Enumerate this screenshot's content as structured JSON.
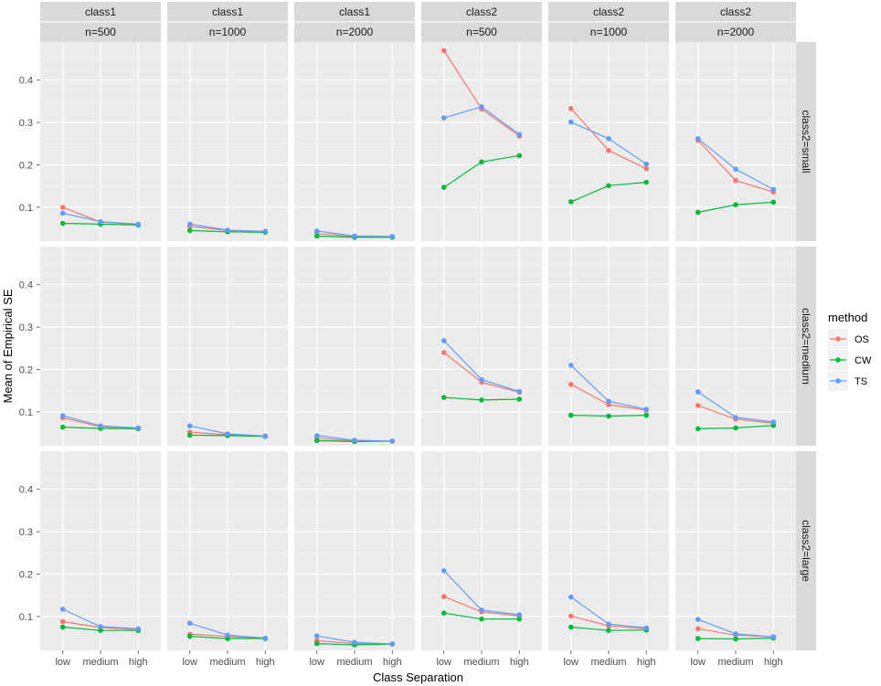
{
  "chart_data": {
    "type": "line",
    "xlabel": "Class Separation",
    "ylabel": "Mean of Empirical SE",
    "categories": [
      "low",
      "medium",
      "high"
    ],
    "ylim": [
      0.02,
      0.49
    ],
    "yticks": [
      0.1,
      0.2,
      0.3,
      0.4
    ],
    "yticklabels": [
      "0.1",
      "0.2",
      "0.3",
      "0.4"
    ],
    "columns": [
      {
        "top": "class1",
        "bottom": "n=500"
      },
      {
        "top": "class1",
        "bottom": "n=1000"
      },
      {
        "top": "class1",
        "bottom": "n=2000"
      },
      {
        "top": "class2",
        "bottom": "n=500"
      },
      {
        "top": "class2",
        "bottom": "n=1000"
      },
      {
        "top": "class2",
        "bottom": "n=2000"
      }
    ],
    "rows": [
      "class2=small",
      "class2=medium",
      "class2=large"
    ],
    "legend": {
      "title": "method",
      "entries": [
        {
          "name": "OS",
          "color": "#F8766D"
        },
        {
          "name": "CW",
          "color": "#00BA38"
        },
        {
          "name": "TS",
          "color": "#619CFF"
        }
      ]
    },
    "panels": [
      [
        {
          "OS": [
            0.1,
            0.065,
            0.059
          ],
          "CW": [
            0.062,
            0.06,
            0.058
          ],
          "TS": [
            0.086,
            0.066,
            0.06
          ]
        },
        {
          "OS": [
            0.055,
            0.045,
            0.043
          ],
          "CW": [
            0.045,
            0.042,
            0.041
          ],
          "TS": [
            0.06,
            0.046,
            0.043
          ]
        },
        {
          "OS": [
            0.038,
            0.031,
            0.03
          ],
          "CW": [
            0.032,
            0.029,
            0.029
          ],
          "TS": [
            0.044,
            0.032,
            0.031
          ]
        },
        {
          "OS": [
            0.47,
            0.332,
            0.268
          ],
          "CW": [
            0.147,
            0.207,
            0.222
          ],
          "TS": [
            0.311,
            0.337,
            0.272
          ]
        },
        {
          "OS": [
            0.333,
            0.234,
            0.191
          ],
          "CW": [
            0.113,
            0.151,
            0.159
          ],
          "TS": [
            0.301,
            0.262,
            0.202
          ]
        },
        {
          "OS": [
            0.258,
            0.163,
            0.136
          ],
          "CW": [
            0.088,
            0.106,
            0.112
          ],
          "TS": [
            0.262,
            0.19,
            0.142
          ]
        }
      ],
      [
        {
          "OS": [
            0.086,
            0.065,
            0.061
          ],
          "CW": [
            0.064,
            0.061,
            0.06
          ],
          "TS": [
            0.091,
            0.067,
            0.062
          ]
        },
        {
          "OS": [
            0.052,
            0.046,
            0.043
          ],
          "CW": [
            0.045,
            0.044,
            0.042
          ],
          "TS": [
            0.067,
            0.048,
            0.043
          ]
        },
        {
          "OS": [
            0.038,
            0.031,
            0.031
          ],
          "CW": [
            0.032,
            0.03,
            0.031
          ],
          "TS": [
            0.044,
            0.033,
            0.031
          ]
        },
        {
          "OS": [
            0.24,
            0.17,
            0.146
          ],
          "CW": [
            0.134,
            0.128,
            0.13
          ],
          "TS": [
            0.268,
            0.176,
            0.148
          ]
        },
        {
          "OS": [
            0.165,
            0.117,
            0.104
          ],
          "CW": [
            0.092,
            0.09,
            0.092
          ],
          "TS": [
            0.21,
            0.125,
            0.106
          ]
        },
        {
          "OS": [
            0.115,
            0.083,
            0.073
          ],
          "CW": [
            0.06,
            0.062,
            0.068
          ],
          "TS": [
            0.147,
            0.087,
            0.076
          ]
        }
      ],
      [
        {
          "OS": [
            0.088,
            0.074,
            0.069
          ],
          "CW": [
            0.075,
            0.067,
            0.067
          ],
          "TS": [
            0.117,
            0.076,
            0.071
          ]
        },
        {
          "OS": [
            0.058,
            0.053,
            0.048
          ],
          "CW": [
            0.053,
            0.048,
            0.048
          ],
          "TS": [
            0.084,
            0.056,
            0.049
          ]
        },
        {
          "OS": [
            0.043,
            0.036,
            0.035
          ],
          "CW": [
            0.036,
            0.033,
            0.035
          ],
          "TS": [
            0.054,
            0.039,
            0.035
          ]
        },
        {
          "OS": [
            0.147,
            0.111,
            0.101
          ],
          "CW": [
            0.108,
            0.094,
            0.094
          ],
          "TS": [
            0.208,
            0.115,
            0.104
          ]
        },
        {
          "OS": [
            0.101,
            0.078,
            0.071
          ],
          "CW": [
            0.075,
            0.067,
            0.068
          ],
          "TS": [
            0.146,
            0.082,
            0.073
          ]
        },
        {
          "OS": [
            0.071,
            0.056,
            0.052
          ],
          "CW": [
            0.048,
            0.047,
            0.049
          ],
          "TS": [
            0.093,
            0.059,
            0.052
          ]
        }
      ]
    ]
  }
}
